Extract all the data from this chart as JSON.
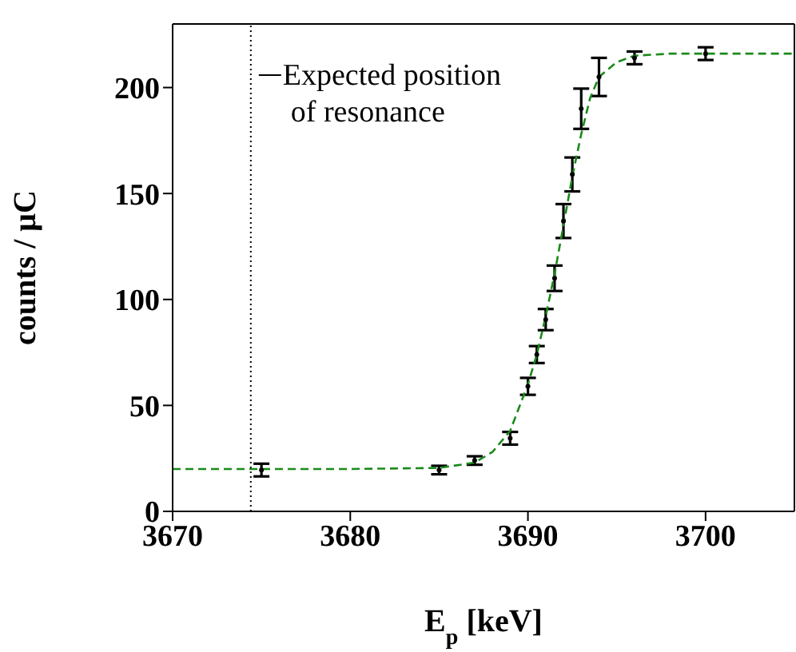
{
  "chart_data": {
    "type": "scatter",
    "xlabel": "E$_{p}$ [keV]",
    "ylabel": "counts / μC",
    "xlim": [
      3670,
      3705
    ],
    "xticks": [
      3670,
      3680,
      3690,
      3700
    ],
    "ylim": [
      0,
      230
    ],
    "yticks": [
      0,
      50,
      100,
      150,
      200
    ],
    "ref_lines": [
      {
        "axis": "x",
        "value": 3674.4,
        "label": "Expected position\nof resonance",
        "color": "#000000",
        "line_style": "dotted"
      }
    ],
    "series": [
      {
        "color": "#000000",
        "marker": "circle",
        "x": [
          3675,
          3685,
          3687,
          3689,
          3690,
          3690.5,
          3691,
          3691.5,
          3692,
          3692.5,
          3693,
          3694,
          3696,
          3700
        ],
        "values": [
          19.5,
          19.5,
          24,
          34.5,
          59,
          74,
          90.5,
          110,
          137,
          159,
          190,
          205,
          214,
          216
        ],
        "errors": [
          3,
          2,
          2,
          3,
          4,
          4,
          5,
          6,
          8,
          8,
          9.5,
          9,
          3,
          3
        ]
      },
      {
        "type": "line",
        "color": "#1a8a1a",
        "marker": "none",
        "line_style": "dashed",
        "x": [
          3670,
          3680,
          3685,
          3687,
          3688,
          3689,
          3690,
          3690.5,
          3691,
          3691.5,
          3692,
          3692.5,
          3693,
          3693.5,
          3694,
          3695,
          3696,
          3698,
          3705
        ],
        "values": [
          20,
          20,
          20.5,
          23,
          28,
          38,
          60,
          74,
          92,
          112,
          135,
          158,
          178,
          195,
          205,
          212,
          215,
          216,
          216
        ]
      }
    ]
  }
}
